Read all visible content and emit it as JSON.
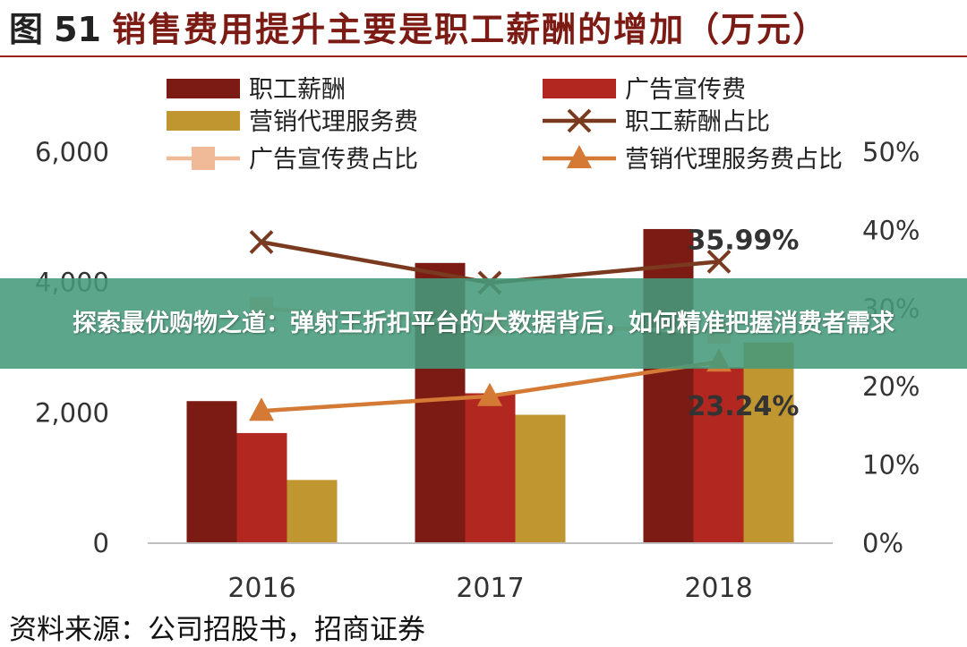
{
  "header": {
    "figure_label": "图",
    "figure_number": "51",
    "title_text": "销售费用提升主要是职工薪酬的增加（万元）"
  },
  "banner": {
    "text": "探索最优购物之道：弹射王折扣平台的大数据背后，如何精准把握消费者需求"
  },
  "source": "资料来源：公司招股书，招商证券",
  "chart_data": {
    "type": "bar",
    "categories": [
      "2016",
      "2017",
      "2018"
    ],
    "left_axis": {
      "ylim": [
        0,
        6000
      ],
      "ticks": [
        "0",
        "2,000",
        "4,000",
        "6,000"
      ],
      "tick_values": [
        0,
        2000,
        4000,
        6000
      ]
    },
    "right_axis": {
      "ylim": [
        0,
        0.5
      ],
      "ticks": [
        "0%",
        "10%",
        "20%",
        "30%",
        "40%",
        "50%"
      ],
      "tick_values": [
        0,
        0.1,
        0.2,
        0.3,
        0.4,
        0.5
      ]
    },
    "series": [
      {
        "name": "职工薪酬",
        "kind": "bar",
        "axis": "left",
        "color": "#7b1b14",
        "values": [
          2180,
          4300,
          4820
        ]
      },
      {
        "name": "广告宣传费",
        "kind": "bar",
        "axis": "left",
        "color": "#b2271f",
        "values": [
          1690,
          2300,
          2700
        ]
      },
      {
        "name": "营销代理服务费",
        "kind": "bar",
        "axis": "left",
        "color": "#bf962f",
        "values": [
          970,
          1970,
          3080
        ]
      },
      {
        "name": "职工薪酬占比",
        "kind": "line",
        "axis": "right",
        "color": "#7a3a1f",
        "marker": "x",
        "values": [
          0.385,
          0.333,
          0.36
        ]
      },
      {
        "name": "广告宣传费占比",
        "kind": "line",
        "axis": "right",
        "color": "#f0b998",
        "marker": "square",
        "values": [
          0.3,
          0.28,
          0.27
        ]
      },
      {
        "name": "营销代理服务费占比",
        "kind": "line",
        "axis": "right",
        "color": "#d47a35",
        "marker": "triangle",
        "values": [
          0.169,
          0.188,
          0.232
        ]
      }
    ],
    "annotations": [
      {
        "text": "35.99%",
        "series": "职工薪酬占比",
        "category": "2018"
      },
      {
        "text": "23.24%",
        "series": "营销代理服务费占比",
        "category": "2018"
      }
    ],
    "legend": {
      "position": "top",
      "columns": 2
    },
    "grid": false
  }
}
